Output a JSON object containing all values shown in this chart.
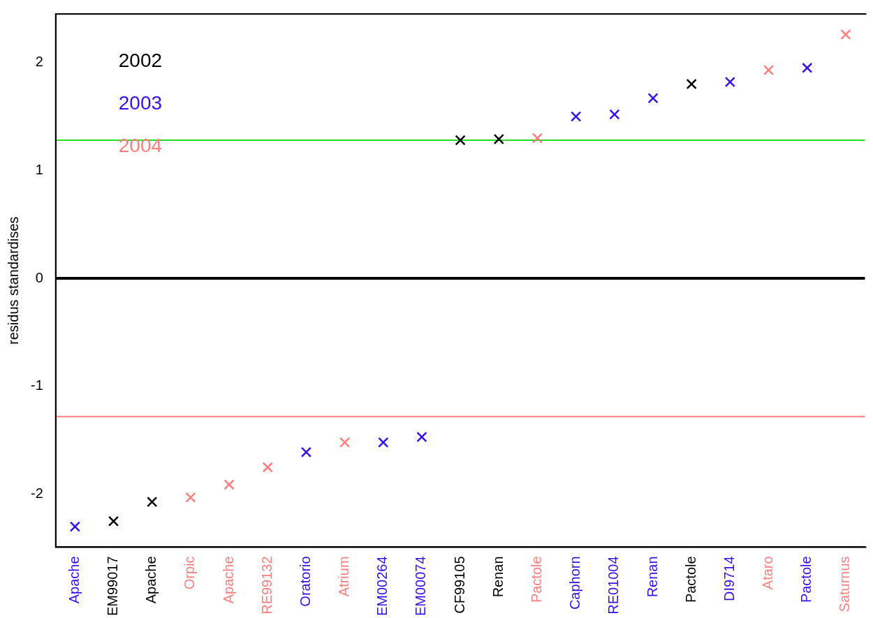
{
  "chart_data": {
    "type": "scatter",
    "ylabel": "residus standardises",
    "categories": [
      "Apache",
      "EM99017",
      "Apache",
      "Orpic",
      "Apache",
      "RE99132",
      "Oratorio",
      "Atrium",
      "EM00264",
      "EM00074",
      "CF99105",
      "Renan",
      "Pactole",
      "Caphorn",
      "RE01004",
      "Renan",
      "Pactole",
      "DI9714",
      "Ataro",
      "Pactole",
      "Saturnus"
    ],
    "series": [
      {
        "name": "2002",
        "color": "#000000",
        "values": [
          null,
          -2.25,
          -2.07,
          null,
          null,
          null,
          null,
          null,
          null,
          null,
          1.28,
          1.29,
          null,
          null,
          null,
          null,
          1.8,
          null,
          null,
          null,
          null
        ]
      },
      {
        "name": "2003",
        "color": "#3311ee",
        "values": [
          -2.3,
          null,
          null,
          null,
          null,
          null,
          -1.61,
          null,
          -1.52,
          -1.47,
          null,
          null,
          null,
          1.5,
          1.52,
          1.67,
          null,
          1.82,
          null,
          1.95,
          null
        ]
      },
      {
        "name": "2004",
        "color": "#ff7f7f",
        "values": [
          null,
          null,
          null,
          -2.03,
          -1.91,
          -1.75,
          null,
          -1.52,
          null,
          null,
          null,
          null,
          1.3,
          null,
          null,
          null,
          null,
          null,
          1.93,
          null,
          2.26
        ]
      }
    ],
    "ylim": [
      -2.49,
      2.45
    ],
    "yticks": [
      -2,
      -1,
      0,
      1,
      2
    ],
    "grid": false,
    "legend": "top left",
    "marker": "cross",
    "ref_lines": [
      {
        "axis": "y",
        "value": 0,
        "color": "#000000"
      },
      {
        "axis": "y",
        "value": 1.28,
        "color": "#22dd22"
      },
      {
        "axis": "y",
        "value": -1.28,
        "color": "#ff7f7f"
      }
    ]
  }
}
